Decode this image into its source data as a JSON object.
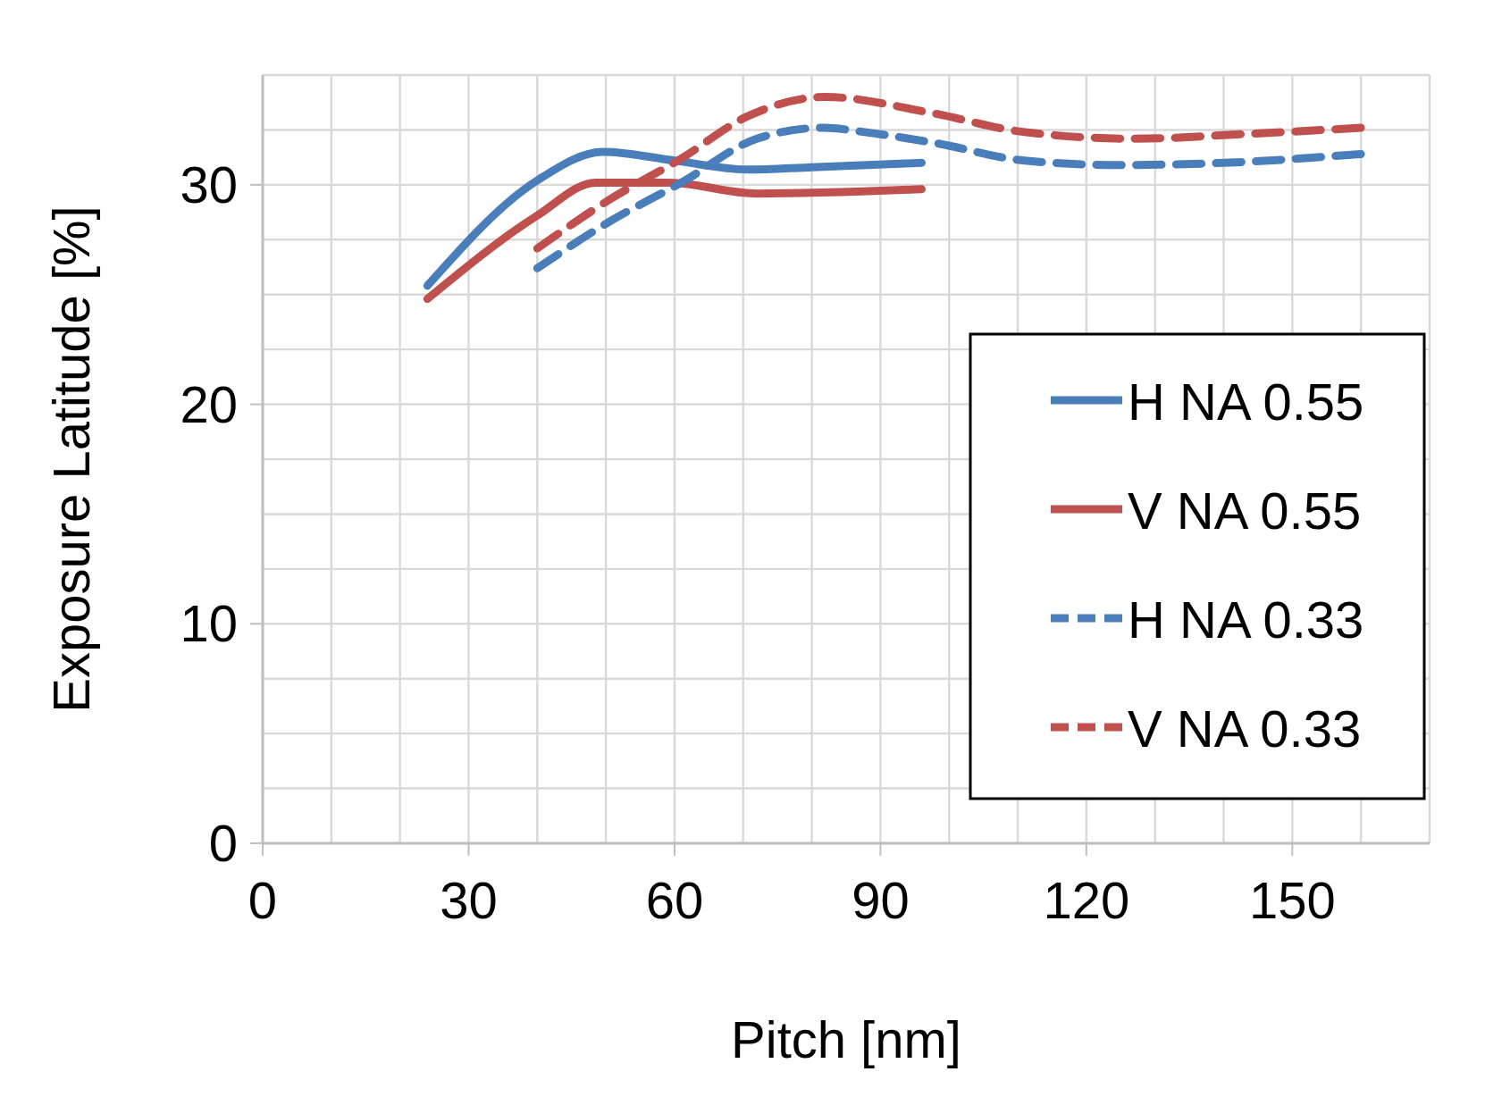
{
  "chart_data": {
    "type": "line",
    "xlabel": "Pitch [nm]",
    "ylabel": "Exposure Latitude [%]",
    "xlim": [
      0,
      170
    ],
    "ylim": [
      0,
      35
    ],
    "xticks": [
      0,
      {
        "value": 10,
        "label": null
      },
      {
        "value": 20,
        "label": null
      },
      30,
      {
        "value": 40,
        "label": null
      },
      {
        "value": 50,
        "label": null
      },
      60,
      {
        "value": 70,
        "label": null
      },
      {
        "value": 80,
        "label": null
      },
      90,
      {
        "value": 100,
        "label": null
      },
      {
        "value": 110,
        "label": null
      },
      120,
      {
        "value": 130,
        "label": null
      },
      {
        "value": 140,
        "label": null
      },
      150,
      {
        "value": 160,
        "label": null
      },
      {
        "value": 170,
        "label": null
      }
    ],
    "yticks": [
      0,
      {
        "value": 2.5,
        "label": null
      },
      {
        "value": 5,
        "label": null
      },
      {
        "value": 7.5,
        "label": null
      },
      10,
      {
        "value": 12.5,
        "label": null
      },
      {
        "value": 15,
        "label": null
      },
      {
        "value": 17.5,
        "label": null
      },
      20,
      {
        "value": 22.5,
        "label": null
      },
      {
        "value": 25,
        "label": null
      },
      {
        "value": 27.5,
        "label": null
      },
      30,
      {
        "value": 32.5,
        "label": null
      },
      {
        "value": 35,
        "label": null
      }
    ],
    "grid": true,
    "legend": "right",
    "marker": "none",
    "series": [
      {
        "name": "H NA 0.55",
        "color": "#4a7ebb",
        "line_style": "solid",
        "x": [
          24,
          40,
          49.6,
          60,
          70.5,
          80,
          96
        ],
        "values": [
          25.4,
          30.2,
          31.5,
          31.1,
          30.7,
          30.8,
          31.0
        ]
      },
      {
        "name": "V NA 0.55",
        "color": "#c0504d",
        "line_style": "solid",
        "x": [
          24,
          40,
          48.5,
          59,
          72,
          96
        ],
        "values": [
          24.8,
          28.6,
          30.1,
          30.1,
          29.6,
          29.8
        ]
      },
      {
        "name": "H NA 0.33",
        "color": "#4a7ebb",
        "line_style": "dashed",
        "x": [
          40,
          50.4,
          61,
          72,
          81.7,
          87.7,
          98,
          111,
          125,
          140,
          160
        ],
        "values": [
          26.2,
          28.3,
          30.1,
          32.1,
          32.6,
          32.4,
          31.9,
          31.1,
          30.9,
          31.0,
          31.4
        ]
      },
      {
        "name": "V NA 0.33",
        "color": "#c0504d",
        "line_style": "dashed",
        "x": [
          40,
          50.4,
          61,
          70.5,
          82,
          97,
          111,
          127,
          142.5,
          160
        ],
        "values": [
          27.1,
          29.3,
          31.2,
          33.1,
          34.0,
          33.3,
          32.4,
          32.1,
          32.3,
          32.6
        ]
      }
    ]
  }
}
